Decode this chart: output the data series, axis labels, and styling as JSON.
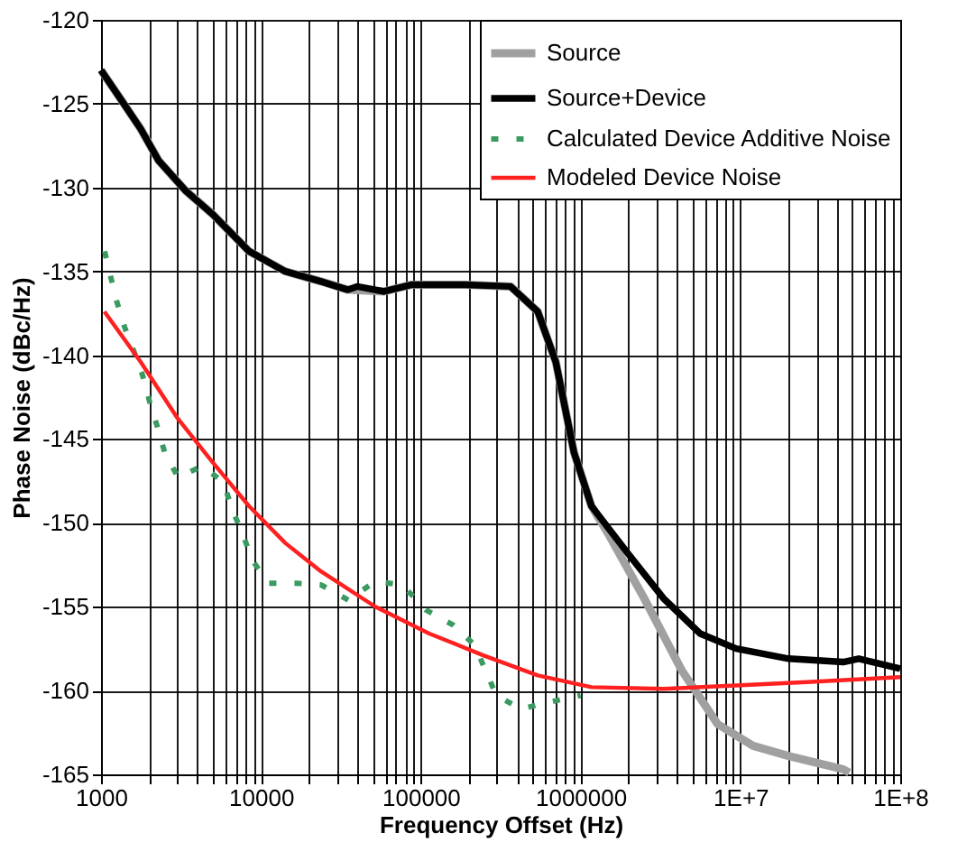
{
  "chart_data": {
    "type": "line",
    "xlabel": "Frequency Offset (Hz)",
    "ylabel": "Phase Noise (dBc/Hz)",
    "log": "x",
    "grid": true,
    "legend": "top right",
    "marker": "none",
    "xlim": [
      1000,
      100000000
    ],
    "ylim": [
      -165,
      -120
    ],
    "xticks": [
      1000,
      {
        "value": 2000,
        "label": null
      },
      {
        "value": 3000,
        "label": null
      },
      {
        "value": 4000,
        "label": null
      },
      {
        "value": 5000,
        "label": null
      },
      {
        "value": 6000,
        "label": null
      },
      {
        "value": 7000,
        "label": null
      },
      {
        "value": 8000,
        "label": null
      },
      {
        "value": 9000,
        "label": null
      },
      10000,
      {
        "value": 20000,
        "label": null
      },
      {
        "value": 30000,
        "label": null
      },
      {
        "value": 40000,
        "label": null
      },
      {
        "value": 50000,
        "label": null
      },
      {
        "value": 60000,
        "label": null
      },
      {
        "value": 70000,
        "label": null
      },
      {
        "value": 80000,
        "label": null
      },
      {
        "value": 90000,
        "label": null
      },
      100000,
      {
        "value": 200000,
        "label": null
      },
      {
        "value": 300000,
        "label": null
      },
      {
        "value": 400000,
        "label": null
      },
      {
        "value": 500000,
        "label": null
      },
      {
        "value": 600000,
        "label": null
      },
      {
        "value": 700000,
        "label": null
      },
      {
        "value": 800000,
        "label": null
      },
      {
        "value": 900000,
        "label": null
      },
      1000000,
      {
        "value": 2000000,
        "label": null
      },
      {
        "value": 3000000,
        "label": null
      },
      {
        "value": 4000000,
        "label": null
      },
      {
        "value": 5000000,
        "label": null
      },
      {
        "value": 6000000,
        "label": null
      },
      {
        "value": 7000000,
        "label": null
      },
      {
        "value": 8000000,
        "label": null
      },
      {
        "value": 9000000,
        "label": null
      },
      {
        "value": 10000000,
        "label": "1E+7"
      },
      {
        "value": 20000000,
        "label": null
      },
      {
        "value": 30000000,
        "label": null
      },
      {
        "value": 40000000,
        "label": null
      },
      {
        "value": 50000000,
        "label": null
      },
      {
        "value": 60000000,
        "label": null
      },
      {
        "value": 70000000,
        "label": null
      },
      {
        "value": 80000000,
        "label": null
      },
      {
        "value": 90000000,
        "label": null
      },
      {
        "value": 100000000,
        "label": "1E+8"
      }
    ],
    "yticks": [
      -165,
      -160,
      -155,
      -150,
      -145,
      -140,
      -135,
      -130,
      -125,
      -120
    ],
    "series": [
      {
        "name": "Source",
        "color": "#a0a0a0",
        "line_style": "solid",
        "x": [
          1000,
          1366,
          1770,
          2295,
          3390,
          5000,
          8430,
          14200,
          23800,
          35000,
          59000,
          87000,
          190000,
          365000,
          540000,
          700000,
          910000,
          1170000,
          1500000,
          2500000,
          4300000,
          7200000,
          12000000,
          20000000,
          44000000,
          48000000
        ],
        "values": [
          -123,
          -124.9,
          -126.5,
          -128.4,
          -130.2,
          -131.6,
          -133.8,
          -135,
          -135.6,
          -136.1,
          -136.2,
          -135.8,
          -135.8,
          -135.9,
          -137.4,
          -140.4,
          -145.8,
          -149,
          -150.7,
          -154.5,
          -158.8,
          -162,
          -163.3,
          -163.9,
          -164.7,
          -164.9
        ]
      },
      {
        "name": "Source+Device",
        "color": "#000000",
        "line_style": "solid",
        "x": [
          1000,
          1366,
          1770,
          2295,
          3390,
          5000,
          8430,
          14200,
          23800,
          35000,
          40000,
          59000,
          87000,
          190000,
          365000,
          540000,
          700000,
          910000,
          1170000,
          1970000,
          3300000,
          5600000,
          9400000,
          20000000,
          44000000,
          55000000,
          100000000
        ],
        "values": [
          -123,
          -124.9,
          -126.5,
          -128.4,
          -130.2,
          -131.6,
          -133.8,
          -135,
          -135.6,
          -136.1,
          -135.9,
          -136.2,
          -135.8,
          -135.8,
          -135.9,
          -137.4,
          -140.4,
          -145.8,
          -149,
          -151.8,
          -154.5,
          -156.6,
          -157.5,
          -158.1,
          -158.3,
          -158.1,
          -158.7
        ]
      },
      {
        "name": "Calculated Device Additive Noise",
        "color": "#3a9a60",
        "line_style": "dashed",
        "x": [
          1053,
          1148,
          1254,
          1402,
          1596,
          1818,
          2017,
          2256,
          2502,
          3035,
          4314,
          5846,
          6614,
          7733,
          8790,
          11200,
          16600,
          23800,
          35200,
          51800,
          76600,
          108000,
          160000,
          218000,
          254000,
          298000,
          424000,
          628000,
          1000000
        ],
        "values": [
          -133.8,
          -135.3,
          -136.8,
          -138.3,
          -139.7,
          -141.2,
          -142.8,
          -144.3,
          -145.8,
          -147.3,
          -146.6,
          -147.6,
          -149.2,
          -150.7,
          -152.2,
          -153.6,
          -153.6,
          -153.7,
          -154.6,
          -153.5,
          -153.7,
          -155.2,
          -156.1,
          -157.3,
          -158.8,
          -160.3,
          -161.1,
          -160.7,
          -160.3
        ]
      },
      {
        "name": "Modeled Device Noise",
        "color": "#ff2020",
        "line_style": "solid",
        "x": [
          1050,
          1770,
          2980,
          5000,
          8430,
          14200,
          23800,
          52000,
          113000,
          246000,
          540000,
          1170000,
          3300000,
          9400000,
          26000000,
          100000000
        ],
        "values": [
          -137.4,
          -140.4,
          -143.7,
          -146.4,
          -149,
          -151.2,
          -152.9,
          -155,
          -156.6,
          -157.9,
          -159.1,
          -159.8,
          -159.9,
          -159.7,
          -159.5,
          -159.2
        ]
      }
    ]
  }
}
